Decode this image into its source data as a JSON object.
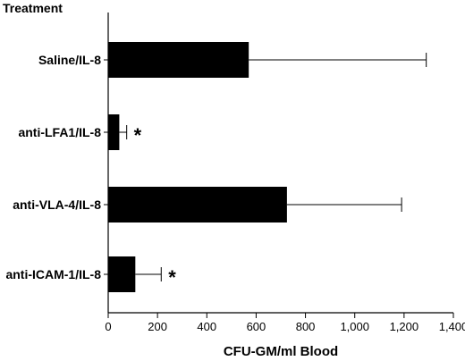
{
  "chart_data": {
    "type": "bar",
    "orientation": "horizontal",
    "y_title": "Treatment",
    "xlabel": "CFU-GM/ml Blood",
    "categories": [
      "Saline/IL-8",
      "anti-LFA1/IL-8",
      "anti-VLA-4/IL-8",
      "anti-ICAM-1/IL-8"
    ],
    "values": [
      570,
      45,
      725,
      110
    ],
    "error": [
      720,
      30,
      465,
      105
    ],
    "significance": [
      "",
      "*",
      "",
      "*"
    ],
    "xlim": [
      0,
      1400
    ],
    "xticks": [
      0,
      200,
      400,
      600,
      800,
      1000,
      1200,
      1400
    ],
    "xtick_labels": [
      "0",
      "200",
      "400",
      "600",
      "800",
      "1,000",
      "1,200",
      "1,400"
    ],
    "grid": false,
    "colors": {
      "bar": "#000000",
      "axis": "#000000"
    }
  }
}
